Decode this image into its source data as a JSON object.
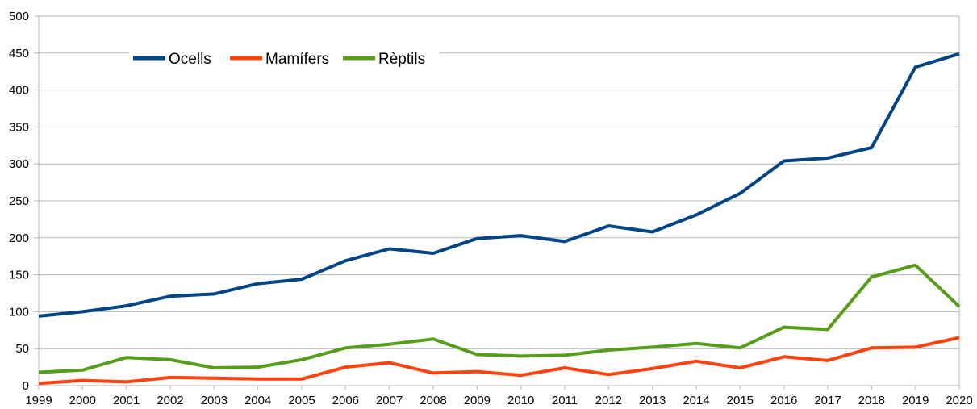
{
  "chart_data": {
    "type": "line",
    "title": "",
    "xlabel": "",
    "ylabel": "",
    "categories": [
      "1999",
      "2000",
      "2001",
      "2002",
      "2003",
      "2004",
      "2005",
      "2006",
      "2007",
      "2008",
      "2009",
      "2010",
      "2011",
      "2012",
      "2013",
      "2014",
      "2015",
      "2016",
      "2017",
      "2018",
      "2019",
      "2020"
    ],
    "y_ticks": [
      "0",
      "50",
      "100",
      "150",
      "200",
      "250",
      "300",
      "350",
      "400",
      "450",
      "500"
    ],
    "ylim": [
      0,
      500
    ],
    "grid": "horizontal",
    "legend_position": "top-left",
    "series": [
      {
        "name": "Ocells",
        "color": "#004586",
        "values": [
          94,
          100,
          108,
          121,
          124,
          138,
          144,
          169,
          185,
          179,
          199,
          203,
          195,
          216,
          208,
          231,
          260,
          304,
          308,
          322,
          431,
          449
        ]
      },
      {
        "name": "Mamífers",
        "color": "#ff420e",
        "values": [
          3,
          7,
          5,
          11,
          10,
          9,
          9,
          25,
          31,
          17,
          19,
          14,
          24,
          15,
          23,
          33,
          24,
          39,
          34,
          51,
          52,
          65
        ]
      },
      {
        "name": "Rèptils",
        "color": "#579d1c",
        "values": [
          18,
          21,
          38,
          35,
          24,
          25,
          35,
          51,
          56,
          63,
          42,
          40,
          41,
          48,
          52,
          57,
          51,
          79,
          76,
          147,
          163,
          107
        ]
      }
    ]
  }
}
